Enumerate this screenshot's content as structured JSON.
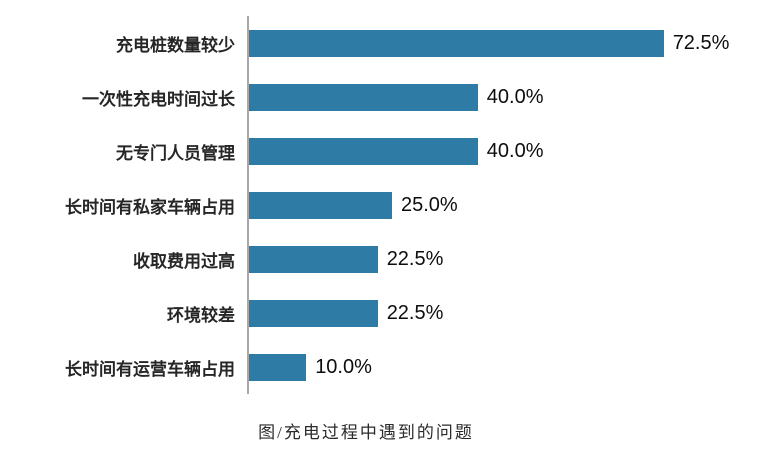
{
  "chart_data": {
    "type": "bar",
    "orientation": "horizontal",
    "title": "",
    "caption": "图/充电过程中遇到的问题",
    "categories": [
      "充电桩数量较少",
      "一次性充电时间过长",
      "无专门人员管理",
      "长时间有私家车辆占用",
      "收取费用过高",
      "环境较差",
      "长时间有运营车辆占用"
    ],
    "values": [
      72.5,
      40.0,
      40.0,
      25.0,
      22.5,
      22.5,
      10.0
    ],
    "value_labels": [
      "72.5%",
      "40.0%",
      "40.0%",
      "25.0%",
      "22.5%",
      "22.5%",
      "10.0%"
    ],
    "xlabel": "",
    "ylabel": "",
    "xlim": [
      0,
      100
    ],
    "grid": false,
    "legend": "none",
    "bar_color": "#2e7ca6",
    "axis_color": "#a8a8a8",
    "label_color": "#262626",
    "value_color": "#0d0d0d"
  }
}
